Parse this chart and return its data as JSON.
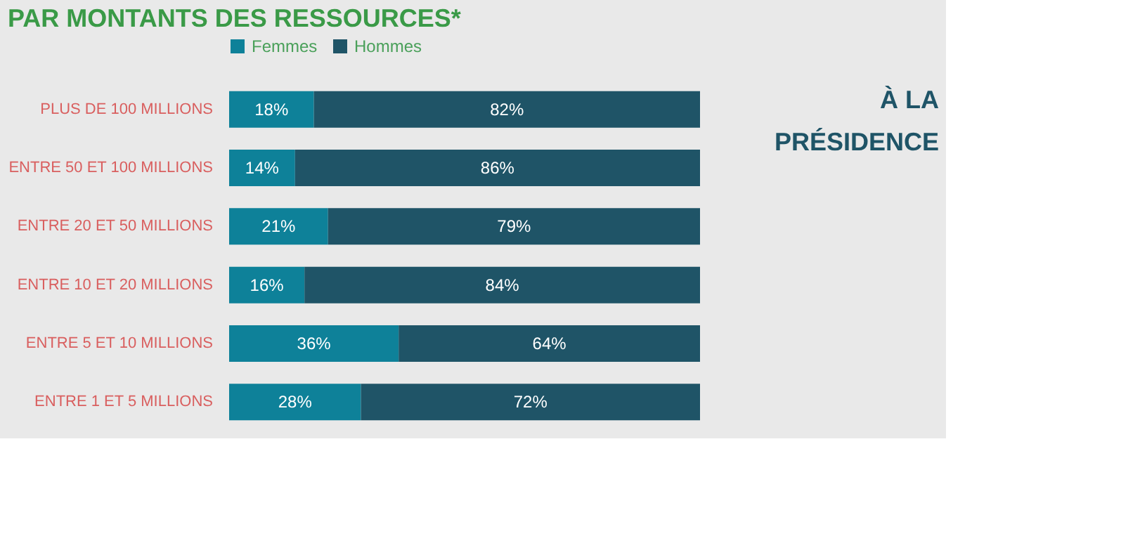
{
  "chart_data": {
    "type": "bar",
    "orientation": "horizontal",
    "stacked": true,
    "title": "PAR MONTANTS DES RESSOURCES*",
    "categories": [
      "PLUS DE 100 MILLIONS",
      "ENTRE 50 ET 100 MILLIONS",
      "ENTRE 20 ET 50 MILLIONS",
      "ENTRE 10 ET 20 MILLIONS",
      "ENTRE 5 ET 10 MILLIONS",
      "ENTRE 1 ET 5 MILLIONS"
    ],
    "series": [
      {
        "name": "Femmes",
        "color": "#0e8199",
        "values": [
          18,
          14,
          21,
          16,
          36,
          28
        ],
        "value_labels": [
          "18%",
          "14%",
          "21%",
          "16%",
          "36%",
          "28%"
        ]
      },
      {
        "name": "Hommes",
        "color": "#1f5467",
        "values": [
          82,
          86,
          79,
          84,
          64,
          72
        ],
        "value_labels": [
          "82%",
          "86%",
          "79%",
          "84%",
          "64%",
          "72%"
        ]
      }
    ],
    "legend": "top",
    "annotations": [
      "À LA PRÉSIDENCE"
    ]
  }
}
